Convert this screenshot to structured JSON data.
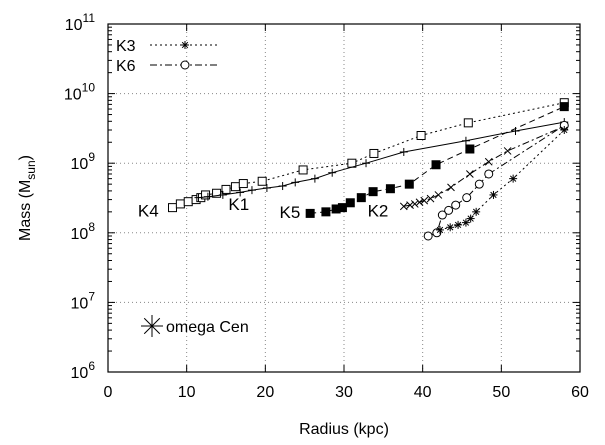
{
  "chart_data": {
    "type": "scatter",
    "xlabel": "Radius (kpc)",
    "ylabel_main": "Mass (M",
    "ylabel_sub": "sun",
    "ylabel_close": ")",
    "xlim": [
      0,
      60
    ],
    "ylim_log10": [
      6,
      11
    ],
    "y_scale": "log",
    "grid": true,
    "x_ticks": [
      0,
      10,
      20,
      30,
      40,
      50,
      60
    ],
    "x_tick_labels": [
      "0",
      "10",
      "20",
      "30",
      "40",
      "50",
      "60"
    ],
    "y_ticks_exp": [
      6,
      7,
      8,
      9,
      10,
      11
    ],
    "y_tick_base": "10",
    "y_tick_exponents": [
      "6",
      "7",
      "8",
      "9",
      "10",
      "11"
    ],
    "legend_position": "top-left",
    "legend": [
      {
        "label": "K3",
        "marker": "star",
        "line": "dotted"
      },
      {
        "label": "K6",
        "marker": "open-circle",
        "line": "dashdot"
      }
    ],
    "legend2": {
      "label": "omega Cen",
      "marker": "big-star",
      "position": "bottom-left"
    },
    "annotations": [
      {
        "text": "K4",
        "x": 3.8,
        "y": 210000000.0
      },
      {
        "text": "K1",
        "x": 15.3,
        "y": 260000000.0
      },
      {
        "text": "K5",
        "x": 21.8,
        "y": 200000000.0
      },
      {
        "text": "K2",
        "x": 33.0,
        "y": 210000000.0
      }
    ],
    "series": [
      {
        "name": "K4",
        "marker": "open-square",
        "line": "dotted",
        "x": [
          8.2,
          9.2,
          10.2,
          11.2,
          11.8,
          12.4,
          13.8,
          15.0,
          16.2,
          17.2,
          19.6,
          24.8,
          31.0,
          33.8,
          39.8,
          45.8,
          58.0
        ],
        "y": [
          230000000.0,
          260000000.0,
          280000000.0,
          300000000.0,
          320000000.0,
          350000000.0,
          370000000.0,
          420000000.0,
          460000000.0,
          510000000.0,
          550000000.0,
          800000000.0,
          1000000000.0,
          1380000000.0,
          2500000000.0,
          3800000000.0,
          7400000000.0
        ]
      },
      {
        "name": "K1",
        "marker": "plus",
        "line": "solid",
        "x": [
          11.5,
          12.7,
          14.6,
          16.8,
          18.3,
          20.2,
          22.2,
          23.8,
          26.3,
          28.5,
          32.8,
          37.6,
          45.5,
          51.8,
          58.0
        ],
        "y": [
          320000000.0,
          330000000.0,
          350000000.0,
          380000000.0,
          410000000.0,
          440000000.0,
          470000000.0,
          530000000.0,
          600000000.0,
          730000000.0,
          1000000000.0,
          1450000000.0,
          2100000000.0,
          2900000000.0,
          3900000000.0
        ]
      },
      {
        "name": "K5",
        "marker": "filled-square",
        "line": "dashed",
        "x": [
          25.7,
          27.7,
          29.0,
          29.8,
          30.8,
          32.2,
          33.7,
          35.9,
          38.3,
          41.7,
          46.0,
          58.0
        ],
        "y": [
          190000000.0,
          200000000.0,
          220000000.0,
          230000000.0,
          270000000.0,
          320000000.0,
          390000000.0,
          430000000.0,
          500000000.0,
          950000000.0,
          1600000000.0,
          6500000000.0
        ]
      },
      {
        "name": "K2",
        "marker": "cross",
        "line": "dashdot",
        "x": [
          37.6,
          38.4,
          39.0,
          39.6,
          40.2,
          41.0,
          42.0,
          43.6,
          46.0,
          48.4,
          50.8,
          58.0
        ],
        "y": [
          240000000.0,
          250000000.0,
          260000000.0,
          275000000.0,
          290000000.0,
          310000000.0,
          350000000.0,
          450000000.0,
          700000000.0,
          1050000000.0,
          1500000000.0,
          3400000000.0
        ]
      },
      {
        "name": "K6",
        "marker": "open-circle",
        "line": "dashdot",
        "x": [
          40.7,
          41.8,
          42.5,
          43.3,
          44.2,
          45.6,
          47.2,
          48.4,
          58.0
        ],
        "y": [
          90000000.0,
          100000000.0,
          180000000.0,
          210000000.0,
          250000000.0,
          320000000.0,
          500000000.0,
          700000000.0,
          3500000000.0
        ]
      },
      {
        "name": "K3",
        "marker": "star",
        "line": "dotted",
        "x": [
          42.2,
          43.5,
          44.5,
          45.5,
          46.1,
          46.8,
          49.0,
          51.5,
          58.0
        ],
        "y": [
          110000000.0,
          120000000.0,
          130000000.0,
          140000000.0,
          160000000.0,
          200000000.0,
          350000000.0,
          600000000.0,
          3000000000.0
        ]
      }
    ]
  }
}
